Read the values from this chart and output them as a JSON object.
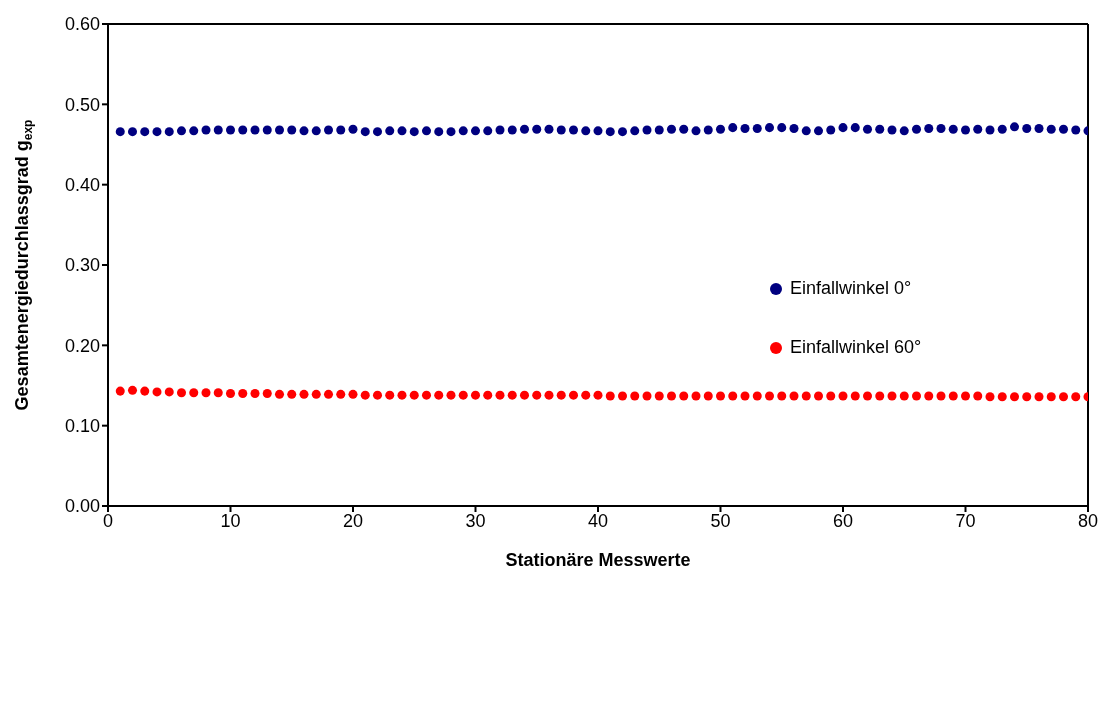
{
  "chart_data": {
    "type": "scatter",
    "xlabel": "Stationäre Messwerte",
    "ylabel": "Gesamtenergiedurchlassgrad g$_{exp}$",
    "x": [
      1,
      2,
      3,
      4,
      5,
      6,
      7,
      8,
      9,
      10,
      11,
      12,
      13,
      14,
      15,
      16,
      17,
      18,
      19,
      20,
      21,
      22,
      23,
      24,
      25,
      26,
      27,
      28,
      29,
      30,
      31,
      32,
      33,
      34,
      35,
      36,
      37,
      38,
      39,
      40,
      41,
      42,
      43,
      44,
      45,
      46,
      47,
      48,
      49,
      50,
      51,
      52,
      53,
      54,
      55,
      56,
      57,
      58,
      59,
      60,
      61,
      62,
      63,
      64,
      65,
      66,
      67,
      68,
      69,
      70,
      71,
      72,
      73,
      74,
      75,
      76,
      77,
      78,
      79,
      80
    ],
    "series": [
      {
        "name": "Einfallwinkel 0°",
        "color": "#000080",
        "values": [
          0.466,
          0.466,
          0.466,
          0.466,
          0.466,
          0.467,
          0.467,
          0.468,
          0.468,
          0.468,
          0.468,
          0.468,
          0.468,
          0.468,
          0.468,
          0.467,
          0.467,
          0.468,
          0.468,
          0.469,
          0.466,
          0.466,
          0.467,
          0.467,
          0.466,
          0.467,
          0.466,
          0.466,
          0.467,
          0.467,
          0.467,
          0.468,
          0.468,
          0.469,
          0.469,
          0.469,
          0.468,
          0.468,
          0.467,
          0.467,
          0.466,
          0.466,
          0.467,
          0.468,
          0.468,
          0.469,
          0.469,
          0.467,
          0.468,
          0.469,
          0.471,
          0.47,
          0.47,
          0.471,
          0.471,
          0.47,
          0.467,
          0.467,
          0.468,
          0.471,
          0.471,
          0.469,
          0.469,
          0.468,
          0.467,
          0.469,
          0.47,
          0.47,
          0.469,
          0.468,
          0.469,
          0.468,
          0.469,
          0.472,
          0.47,
          0.47,
          0.469,
          0.469,
          0.468,
          0.467
        ]
      },
      {
        "name": "Einfallwinkel 60°",
        "color": "#ff0000",
        "values": [
          0.143,
          0.144,
          0.143,
          0.142,
          0.142,
          0.141,
          0.141,
          0.141,
          0.141,
          0.14,
          0.14,
          0.14,
          0.14,
          0.139,
          0.139,
          0.139,
          0.139,
          0.139,
          0.139,
          0.139,
          0.138,
          0.138,
          0.138,
          0.138,
          0.138,
          0.138,
          0.138,
          0.138,
          0.138,
          0.138,
          0.138,
          0.138,
          0.138,
          0.138,
          0.138,
          0.138,
          0.138,
          0.138,
          0.138,
          0.138,
          0.137,
          0.137,
          0.137,
          0.137,
          0.137,
          0.137,
          0.137,
          0.137,
          0.137,
          0.137,
          0.137,
          0.137,
          0.137,
          0.137,
          0.137,
          0.137,
          0.137,
          0.137,
          0.137,
          0.137,
          0.137,
          0.137,
          0.137,
          0.137,
          0.137,
          0.137,
          0.137,
          0.137,
          0.137,
          0.137,
          0.137,
          0.136,
          0.136,
          0.136,
          0.136,
          0.136,
          0.136,
          0.136,
          0.136,
          0.136
        ]
      }
    ],
    "xlim": [
      0,
      80
    ],
    "xticks": [
      0,
      10,
      20,
      30,
      40,
      50,
      60,
      70,
      80
    ],
    "ylim": [
      0,
      0.6
    ],
    "yticks": [
      {
        "value": 0,
        "label": "0.00"
      },
      {
        "value": 0.1,
        "label": "0.10"
      },
      {
        "value": 0.2,
        "label": "0.20"
      },
      {
        "value": 0.3,
        "label": "0.30"
      },
      {
        "value": 0.4,
        "label": "0.40"
      },
      {
        "value": 0.5,
        "label": "0.50"
      },
      {
        "value": 0.6,
        "label": "0.60"
      }
    ],
    "legend": "right",
    "marker": "circle"
  }
}
